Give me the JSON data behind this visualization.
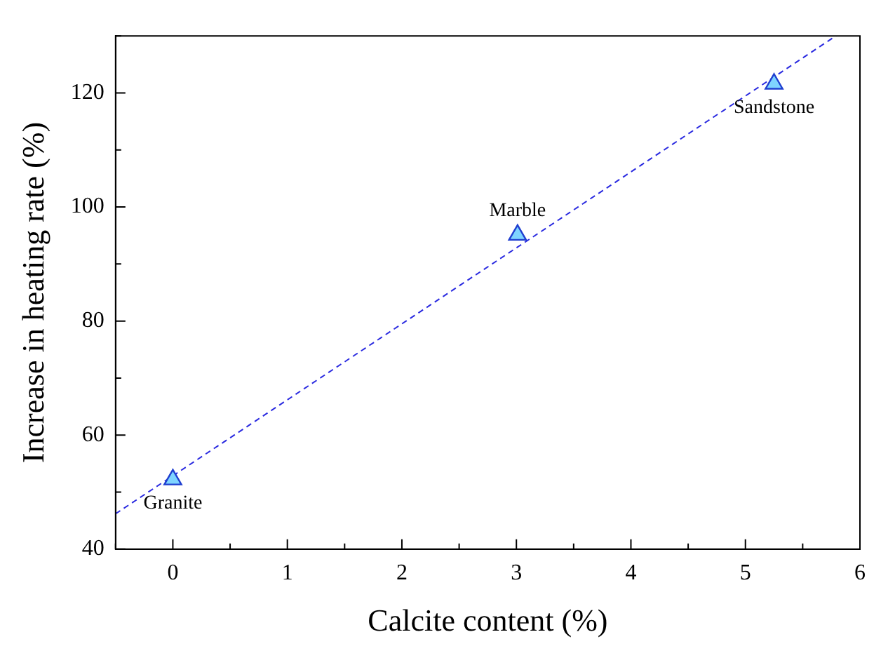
{
  "chart_data": {
    "type": "scatter",
    "xlabel": "Calcite content (%)",
    "ylabel": "Increase in heating rate (%)",
    "xlim": [
      -0.5,
      6
    ],
    "ylim": [
      40,
      130
    ],
    "xticks": [
      {
        "value": -0.5,
        "label": null
      },
      0,
      {
        "value": 0.5,
        "label": null
      },
      1,
      {
        "value": 1.5,
        "label": null
      },
      2,
      {
        "value": 2.5,
        "label": null
      },
      3,
      {
        "value": 3.5,
        "label": null
      },
      4,
      {
        "value": 4.5,
        "label": null
      },
      5,
      {
        "value": 5.5,
        "label": null
      },
      6
    ],
    "yticks": [
      40,
      {
        "value": 50,
        "label": null
      },
      60,
      {
        "value": 70,
        "label": null
      },
      80,
      {
        "value": 90,
        "label": null
      },
      100,
      {
        "value": 110,
        "label": null
      },
      120,
      {
        "value": 130,
        "label": null
      }
    ],
    "series": [
      {
        "type": "scatter",
        "color": "#1f3fd0",
        "x": [
          0,
          3.01,
          5.25
        ],
        "values": [
          52.2,
          95.1,
          121.6
        ],
        "marker": "triangle"
      },
      {
        "type": "line",
        "color": "#2a2ae0",
        "x": [
          -0.5,
          5.79
        ],
        "values": [
          46.2,
          130
        ],
        "line_style": "dashed",
        "marker": "none"
      }
    ],
    "annotations": [
      {
        "text": "Granite",
        "x": 0,
        "y": 52.2
      },
      {
        "text": "Marble",
        "x": 3.01,
        "y": 95.1
      },
      {
        "text": "Sandstone",
        "x": 5.25,
        "y": 121.6
      }
    ],
    "grid": false,
    "legend": false
  }
}
